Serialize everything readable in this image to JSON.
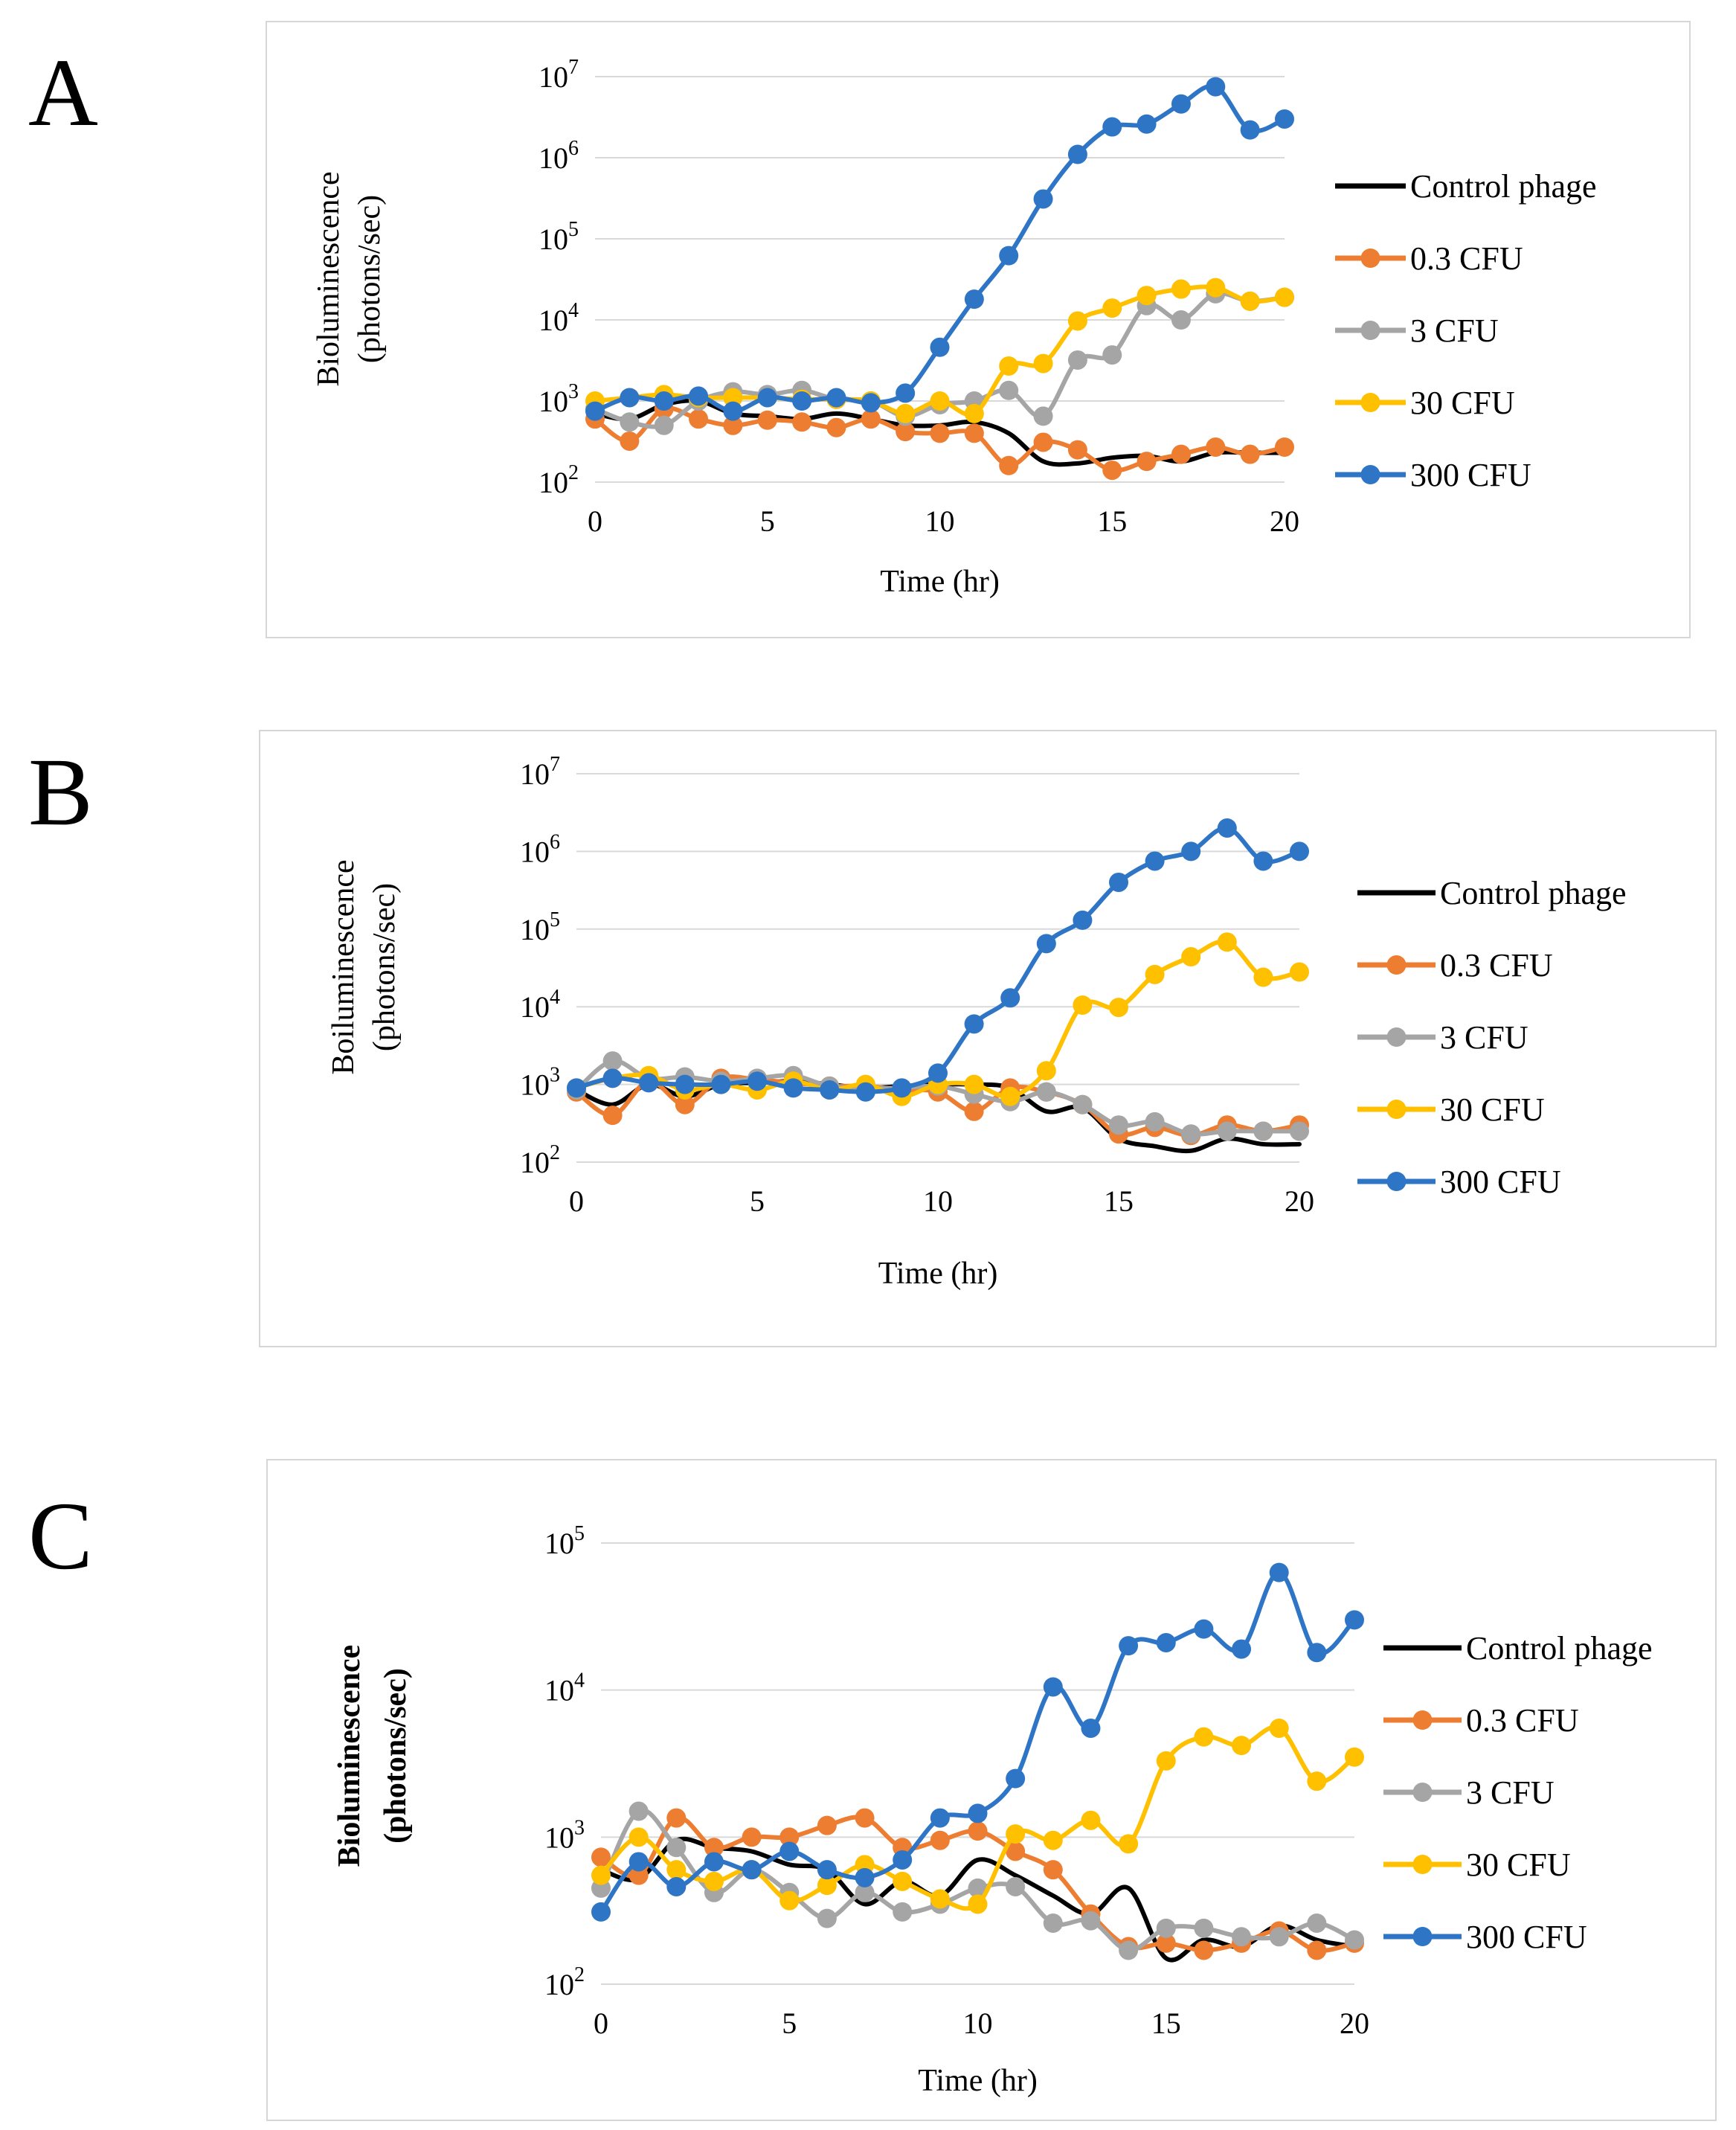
{
  "panels": [
    {
      "letter": "A"
    },
    {
      "letter": "B"
    },
    {
      "letter": "C"
    }
  ],
  "colors": {
    "Control phage": "#000000",
    "0.3 CFU": "#ED7D31",
    "3 CFU": "#A5A5A5",
    "30 CFU": "#FFC000",
    "300 CFU": "#2E75C6",
    "grid": "#d9d9d9"
  },
  "chart_data": [
    {
      "type": "line",
      "panel": "A",
      "xlabel": "Time (hr)",
      "ylabel_lines": [
        "Bioluminescence",
        "(photons/sec)"
      ],
      "yscale": "log",
      "ylim_exp": [
        2,
        7
      ],
      "xlim": [
        0,
        20
      ],
      "x_ticks": [
        "0",
        "5",
        "10",
        "15",
        "20"
      ],
      "y_ticks": [
        {
          "base": "10",
          "exp": "2"
        },
        {
          "base": "10",
          "exp": "3"
        },
        {
          "base": "10",
          "exp": "4"
        },
        {
          "base": "10",
          "exp": "5"
        },
        {
          "base": "10",
          "exp": "6"
        },
        {
          "base": "10",
          "exp": "7"
        }
      ],
      "x": [
        0,
        1,
        2,
        3,
        4,
        5,
        6,
        7,
        8,
        9,
        10,
        11,
        12,
        13,
        14,
        15,
        16,
        17,
        18,
        19,
        20
      ],
      "series": [
        {
          "name": "Control phage",
          "markers": false,
          "values": [
            700,
            600,
            900,
            1000,
            700,
            650,
            600,
            700,
            600,
            500,
            500,
            550,
            400,
            180,
            170,
            200,
            210,
            180,
            230,
            230,
            230
          ]
        },
        {
          "name": "0.3 CFU",
          "markers": true,
          "values": [
            600,
            320,
            800,
            600,
            500,
            580,
            550,
            470,
            600,
            420,
            400,
            400,
            160,
            310,
            250,
            140,
            180,
            220,
            270,
            220,
            270
          ]
        },
        {
          "name": "3 CFU",
          "markers": true,
          "values": [
            800,
            550,
            500,
            1000,
            1300,
            1200,
            1350,
            1050,
            1000,
            650,
            900,
            1000,
            1350,
            650,
            3200,
            3700,
            15000,
            10000,
            21000,
            17000,
            19000
          ]
        },
        {
          "name": "30 CFU",
          "markers": true,
          "values": [
            1000,
            1100,
            1200,
            1100,
            1100,
            1100,
            1050,
            1050,
            1000,
            700,
            1000,
            700,
            2700,
            2900,
            9700,
            14000,
            20000,
            24000,
            25000,
            17000,
            19000
          ]
        },
        {
          "name": "300 CFU",
          "markers": true,
          "values": [
            750,
            1100,
            1000,
            1150,
            750,
            1100,
            1000,
            1100,
            950,
            1250,
            4600,
            18000,
            62000,
            310000,
            1100000,
            2400000,
            2600000,
            4600000,
            7500000,
            2200000,
            3000000
          ]
        }
      ]
    },
    {
      "type": "line",
      "panel": "B",
      "xlabel": "Time (hr)",
      "ylabel_lines": [
        "Boiluminescence",
        "(photons/sec)"
      ],
      "yscale": "log",
      "ylim_exp": [
        2,
        7
      ],
      "xlim": [
        0,
        20
      ],
      "x_ticks": [
        "0",
        "5",
        "10",
        "15",
        "20"
      ],
      "y_ticks": [
        {
          "base": "10",
          "exp": "2"
        },
        {
          "base": "10",
          "exp": "3"
        },
        {
          "base": "10",
          "exp": "4"
        },
        {
          "base": "10",
          "exp": "5"
        },
        {
          "base": "10",
          "exp": "6"
        },
        {
          "base": "10",
          "exp": "7"
        }
      ],
      "x": [
        0,
        1,
        2,
        3,
        4,
        5,
        6,
        7,
        8,
        9,
        10,
        11,
        12,
        13,
        14,
        15,
        16,
        17,
        18,
        19,
        20
      ],
      "series": [
        {
          "name": "Control phage",
          "markers": false,
          "values": [
            850,
            550,
            1000,
            700,
            1000,
            1050,
            1100,
            1000,
            900,
            950,
            1000,
            1000,
            900,
            450,
            500,
            200,
            160,
            140,
            200,
            170,
            170
          ]
        },
        {
          "name": "0.3 CFU",
          "markers": true,
          "values": [
            800,
            400,
            1100,
            550,
            1200,
            1150,
            1050,
            950,
            950,
            850,
            800,
            450,
            900,
            800,
            550,
            230,
            280,
            220,
            300,
            250,
            300
          ]
        },
        {
          "name": "3 CFU",
          "markers": true,
          "values": [
            850,
            2000,
            1200,
            1250,
            1100,
            1200,
            1300,
            950,
            900,
            900,
            950,
            750,
            600,
            800,
            550,
            300,
            330,
            230,
            250,
            250,
            250
          ]
        },
        {
          "name": "30 CFU",
          "markers": true,
          "values": [
            900,
            1200,
            1300,
            850,
            1000,
            850,
            1100,
            850,
            1000,
            700,
            1000,
            1000,
            700,
            1500,
            10500,
            9800,
            26000,
            44000,
            68000,
            24000,
            28000
          ]
        },
        {
          "name": "300 CFU",
          "markers": true,
          "values": [
            900,
            1200,
            1050,
            1000,
            1000,
            1100,
            900,
            850,
            800,
            900,
            1400,
            6000,
            13000,
            65000,
            130000,
            400000,
            750000,
            1000000,
            2000000,
            750000,
            1000000
          ]
        }
      ]
    },
    {
      "type": "line",
      "panel": "C",
      "xlabel": "Time (hr)",
      "ylabel_lines": [
        "Bioluminescence",
        "(photons/sec)"
      ],
      "yscale": "log",
      "ylim_exp": [
        2,
        5
      ],
      "xlim": [
        0,
        20
      ],
      "x_ticks": [
        "0",
        "5",
        "10",
        "15",
        "20"
      ],
      "y_ticks": [
        {
          "base": "10",
          "exp": "2"
        },
        {
          "base": "10",
          "exp": "3"
        },
        {
          "base": "10",
          "exp": "4"
        },
        {
          "base": "10",
          "exp": "5"
        }
      ],
      "x": [
        0,
        1,
        2,
        3,
        4,
        5,
        6,
        7,
        8,
        9,
        10,
        11,
        12,
        13,
        14,
        15,
        16,
        17,
        18,
        19,
        20
      ],
      "series": [
        {
          "name": "Control phage",
          "markers": false,
          "values": [
            600,
            520,
            950,
            850,
            800,
            650,
            600,
            350,
            500,
            400,
            700,
            550,
            400,
            300,
            450,
            150,
            200,
            180,
            250,
            200,
            180
          ]
        },
        {
          "name": "0.3 CFU",
          "markers": true,
          "values": [
            730,
            550,
            1350,
            850,
            1000,
            1000,
            1200,
            1350,
            850,
            950,
            1100,
            800,
            600,
            300,
            180,
            190,
            170,
            190,
            230,
            170,
            190
          ]
        },
        {
          "name": "3 CFU",
          "markers": true,
          "values": [
            450,
            1500,
            850,
            420,
            600,
            420,
            280,
            420,
            310,
            350,
            450,
            460,
            260,
            270,
            170,
            240,
            240,
            210,
            210,
            260,
            200
          ]
        },
        {
          "name": "30 CFU",
          "markers": true,
          "values": [
            550,
            1000,
            600,
            500,
            600,
            370,
            470,
            650,
            500,
            380,
            350,
            1050,
            950,
            1300,
            900,
            3300,
            4800,
            4200,
            5500,
            2400,
            3500
          ]
        },
        {
          "name": "300 CFU",
          "markers": true,
          "values": [
            310,
            680,
            460,
            680,
            600,
            800,
            600,
            530,
            700,
            1350,
            1450,
            2500,
            10500,
            5500,
            20000,
            21000,
            26000,
            19000,
            63000,
            18000,
            30000
          ]
        }
      ]
    }
  ]
}
